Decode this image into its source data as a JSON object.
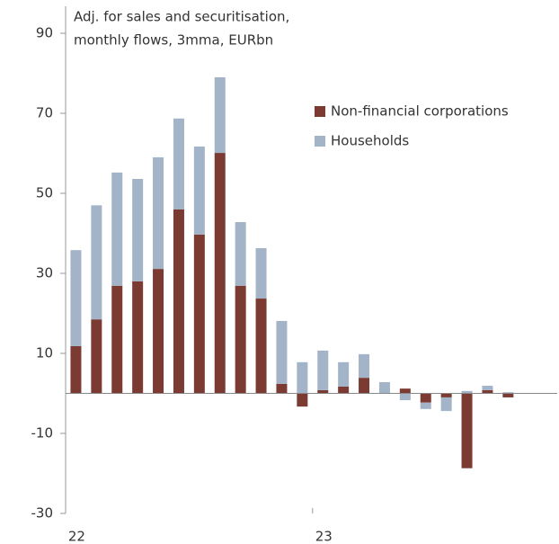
{
  "chart_data": {
    "type": "bar",
    "stacked": true,
    "subtitle": [
      "Adj. for sales and securitisation,",
      "monthly flows, 3mma, EURbn"
    ],
    "categories": [
      "22",
      null,
      null,
      null,
      null,
      null,
      null,
      null,
      null,
      null,
      null,
      null,
      "23",
      null,
      null,
      null,
      null,
      null,
      null,
      null,
      null,
      null
    ],
    "series": [
      {
        "name": "Non-financial corporations",
        "color": "#7b3b32",
        "values": [
          11.8,
          18.5,
          26.9,
          28,
          31.1,
          46,
          39.7,
          60.1,
          26.9,
          23.7,
          2.4,
          -3.3,
          0.8,
          1.7,
          3.9,
          0,
          1.2,
          -2.3,
          -1,
          -18.7,
          0.8,
          -1
        ]
      },
      {
        "name": "Households",
        "color": "#a3b3c8",
        "values": [
          24,
          28.5,
          28.3,
          25.6,
          27.9,
          22.7,
          22,
          18.9,
          15.9,
          12.6,
          15.7,
          7.8,
          9.9,
          6.1,
          5.9,
          2.8,
          -1.7,
          -1.6,
          -3.4,
          0.6,
          1.1,
          0.3
        ]
      }
    ],
    "ylim": [
      -30,
      90
    ],
    "yticks": [
      90,
      70,
      50,
      30,
      10,
      -10,
      -30
    ],
    "legend": "top-right"
  }
}
